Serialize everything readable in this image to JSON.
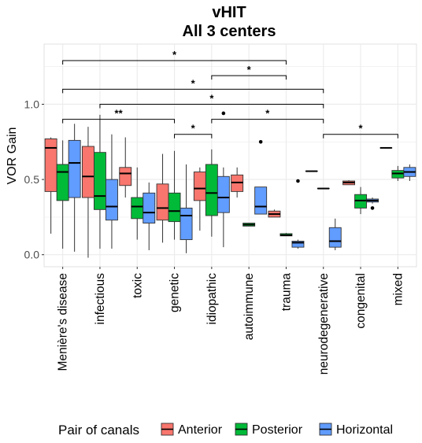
{
  "chart_data": {
    "type": "boxplot",
    "title": "vHIT",
    "subtitle": "All 3 centers",
    "ylabel": "VOR Gain",
    "xlabel": "",
    "ylim": [
      -0.08,
      1.4
    ],
    "yticks": [
      0.0,
      0.5,
      1.0
    ],
    "ytick_labels": [
      "0.0",
      "0.5",
      "1.0"
    ],
    "grid": true,
    "legend": {
      "title": "Pair of canals",
      "position": "bottom",
      "entries": [
        "Anterior",
        "Posterior",
        "Horizontal"
      ]
    },
    "colors": {
      "Anterior": "#F8766D",
      "Posterior": "#00BA38",
      "Horizontal": "#619CFF"
    },
    "categories": [
      "Menière's disease",
      "infectious",
      "toxic",
      "genetic",
      "idiopathic",
      "autoimmune",
      "trauma",
      "neurodegenerative",
      "congenital",
      "mixed"
    ],
    "series": [
      {
        "name": "Anterior",
        "boxes": [
          {
            "min": 0.14,
            "q1": 0.42,
            "median": 0.71,
            "q3": 0.77,
            "max": 0.78,
            "outliers": []
          },
          {
            "min": -0.02,
            "q1": 0.38,
            "median": 0.52,
            "q3": 0.72,
            "max": 0.85,
            "outliers": []
          },
          {
            "min": 0.38,
            "q1": 0.46,
            "median": 0.54,
            "q3": 0.58,
            "max": 0.78,
            "outliers": []
          },
          {
            "min": 0.08,
            "q1": 0.23,
            "median": 0.31,
            "q3": 0.47,
            "max": 0.67,
            "outliers": []
          },
          {
            "min": 0.16,
            "q1": 0.36,
            "median": 0.44,
            "q3": 0.55,
            "max": 0.58,
            "outliers": []
          },
          {
            "min": 0.38,
            "q1": 0.42,
            "median": 0.48,
            "q3": 0.53,
            "max": 0.58,
            "outliers": []
          },
          {
            "min": 0.25,
            "q1": 0.25,
            "median": 0.27,
            "q3": 0.29,
            "max": 0.3,
            "outliers": []
          },
          {
            "min": 0.555,
            "q1": 0.555,
            "median": 0.555,
            "q3": 0.555,
            "max": 0.555,
            "outliers": []
          },
          {
            "min": 0.465,
            "q1": 0.465,
            "median": 0.48,
            "q3": 0.49,
            "max": 0.495,
            "outliers": []
          },
          {
            "min": 0.71,
            "q1": 0.71,
            "median": 0.71,
            "q3": 0.71,
            "max": 0.71,
            "outliers": []
          }
        ]
      },
      {
        "name": "Posterior",
        "boxes": [
          {
            "min": 0.04,
            "q1": 0.36,
            "median": 0.55,
            "q3": 0.6,
            "max": 0.76,
            "outliers": []
          },
          {
            "min": 0.04,
            "q1": 0.3,
            "median": 0.39,
            "q3": 0.68,
            "max": 0.93,
            "outliers": []
          },
          {
            "min": 0.1,
            "q1": 0.24,
            "median": 0.32,
            "q3": 0.38,
            "max": 0.58,
            "outliers": []
          },
          {
            "min": 0.1,
            "q1": 0.22,
            "median": 0.29,
            "q3": 0.41,
            "max": 0.69,
            "outliers": []
          },
          {
            "min": 0.12,
            "q1": 0.26,
            "median": 0.41,
            "q3": 0.6,
            "max": 0.7,
            "outliers": []
          },
          {
            "min": 0.19,
            "q1": 0.19,
            "median": 0.2,
            "q3": 0.21,
            "max": 0.21,
            "outliers": []
          },
          {
            "min": 0.125,
            "q1": 0.125,
            "median": 0.13,
            "q3": 0.14,
            "max": 0.145,
            "outliers": []
          },
          {
            "min": 0.44,
            "q1": 0.44,
            "median": 0.44,
            "q3": 0.44,
            "max": 0.44,
            "outliers": []
          },
          {
            "min": 0.27,
            "q1": 0.31,
            "median": 0.36,
            "q3": 0.4,
            "max": 0.45,
            "outliers": []
          },
          {
            "min": 0.49,
            "q1": 0.51,
            "median": 0.54,
            "q3": 0.56,
            "max": 0.59,
            "outliers": []
          }
        ]
      },
      {
        "name": "Horizontal",
        "boxes": [
          {
            "min": 0.02,
            "q1": 0.38,
            "median": 0.61,
            "q3": 0.76,
            "max": 0.87,
            "outliers": []
          },
          {
            "min": 0.04,
            "q1": 0.23,
            "median": 0.32,
            "q3": 0.5,
            "max": 0.8,
            "outliers": []
          },
          {
            "min": 0.03,
            "q1": 0.21,
            "median": 0.28,
            "q3": 0.41,
            "max": 0.48,
            "outliers": []
          },
          {
            "min": 0.01,
            "q1": 0.1,
            "median": 0.26,
            "q3": 0.31,
            "max": 0.6,
            "outliers": []
          },
          {
            "min": 0.05,
            "q1": 0.28,
            "median": 0.38,
            "q3": 0.52,
            "max": 0.58,
            "outliers": [
              0.94
            ]
          },
          {
            "min": 0.27,
            "q1": 0.27,
            "median": 0.32,
            "q3": 0.45,
            "max": 0.45,
            "outliers": [
              0.75
            ]
          },
          {
            "min": 0.04,
            "q1": 0.05,
            "median": 0.08,
            "q3": 0.09,
            "max": 0.1,
            "outliers": [
              0.49
            ]
          },
          {
            "min": 0.03,
            "q1": 0.05,
            "median": 0.09,
            "q3": 0.18,
            "max": 0.24,
            "outliers": []
          },
          {
            "min": 0.34,
            "q1": 0.35,
            "median": 0.36,
            "q3": 0.37,
            "max": 0.38,
            "outliers": [
              0.31
            ]
          },
          {
            "min": 0.49,
            "q1": 0.52,
            "median": 0.55,
            "q3": 0.58,
            "max": 0.6,
            "outliers": []
          }
        ]
      }
    ],
    "significance": [
      {
        "from": "Menière's disease",
        "to": "trauma",
        "y": 1.29,
        "label": "*"
      },
      {
        "from": "idiopathic",
        "to": "trauma",
        "y": 1.19,
        "label": "*"
      },
      {
        "from": "Menière's disease",
        "to": "neurodegenerative",
        "y": 1.1,
        "label": "*"
      },
      {
        "from": "infectious",
        "to": "neurodegenerative",
        "y": 1.0,
        "label": "*"
      },
      {
        "from": "Menière's disease",
        "to": "genetic",
        "y": 0.9,
        "label": "**"
      },
      {
        "from": "idiopathic",
        "to": "neurodegenerative",
        "y": 0.9,
        "label": "*"
      },
      {
        "from": "genetic",
        "to": "idiopathic",
        "y": 0.8,
        "label": "*"
      },
      {
        "from": "neurodegenerative",
        "to": "mixed",
        "y": 0.8,
        "label": "*"
      }
    ]
  }
}
